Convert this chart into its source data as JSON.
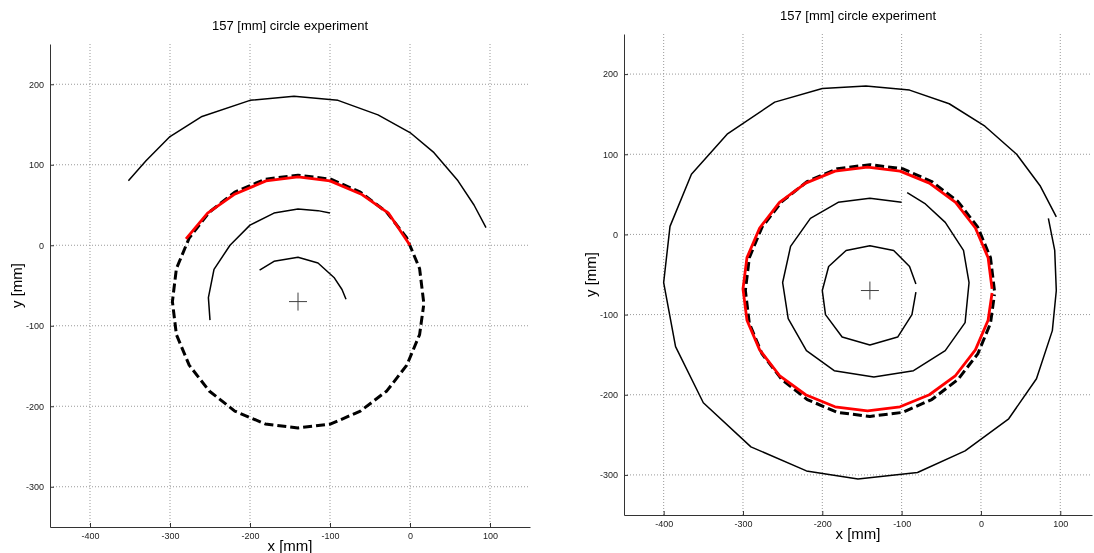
{
  "chart_data": [
    {
      "type": "line",
      "title": "157 [mm] circle experiment",
      "xlabel": "x [mm]",
      "ylabel": "y [mm]",
      "xlim": [
        -450,
        150
      ],
      "ylim": [
        -350,
        250
      ],
      "xticks": [
        -400,
        -300,
        -200,
        -100,
        0,
        100
      ],
      "yticks": [
        -300,
        -200,
        -100,
        0,
        100,
        200
      ],
      "grid": true,
      "series": [
        {
          "color": "#000000",
          "x": [
            -188,
            -170,
            -140,
            -115,
            -95,
            -85,
            -80,
            null,
            -250,
            -252,
            -245,
            -225,
            -200,
            -170,
            -140,
            -115,
            -100,
            null,
            -352,
            -330,
            -300,
            -260,
            -200,
            -145,
            -90,
            -40,
            0,
            30,
            60,
            80,
            95
          ],
          "values": [
            -31,
            -20,
            -15,
            -22,
            -40,
            -55,
            -67,
            null,
            -93,
            -65,
            -30,
            0,
            25,
            40,
            45,
            43,
            40,
            null,
            80,
            105,
            135,
            160,
            180,
            185,
            180,
            162,
            140,
            115,
            80,
            50,
            22
          ]
        },
        {
          "color": "#000000",
          "line_style": "dashed",
          "x": [
            17,
            12,
            -4,
            -29,
            -62,
            -99,
            -140,
            -181,
            -219,
            -251,
            -276,
            -292,
            -297,
            -292,
            -276,
            -251,
            -219,
            -181,
            -140,
            -99,
            -62,
            -29,
            -4,
            12,
            17
          ],
          "values": [
            -70,
            -29,
            9,
            41,
            66,
            82,
            87,
            82,
            66,
            41,
            9,
            -29,
            -70,
            -111,
            -149,
            -181,
            -206,
            -222,
            -227,
            -222,
            -206,
            -181,
            -149,
            -111,
            -75
          ]
        },
        {
          "color": "#ff0000",
          "x": [
            0,
            -27,
            -60,
            -100,
            -140,
            -180,
            -220,
            -253,
            -280
          ],
          "values": [
            0,
            40,
            63,
            80,
            85,
            80,
            63,
            40,
            8
          ]
        },
        {
          "type": "scatter",
          "marker": "cross",
          "color": "#404040",
          "x": [
            -140
          ],
          "values": [
            -70
          ]
        }
      ]
    },
    {
      "type": "line",
      "title": "157 [mm] circle experiment",
      "xlabel": "x [mm]",
      "ylabel": "y [mm]",
      "xlim": [
        -450,
        140
      ],
      "ylim": [
        -350,
        250
      ],
      "xticks": [
        -400,
        -300,
        -200,
        -100,
        0,
        100
      ],
      "yticks": [
        -300,
        -200,
        -100,
        0,
        100,
        200
      ],
      "grid": true,
      "series": [
        {
          "color": "#000000",
          "x": [
            -82,
            -87,
            -105,
            -140,
            -175,
            -196,
            -200,
            -192,
            -170,
            -140,
            -110,
            -90,
            -82,
            null,
            -100,
            -140,
            -180,
            -215,
            -240,
            -250,
            -243,
            -220,
            -185,
            -135,
            -85,
            -45,
            -20,
            -15,
            -22,
            -45,
            -70,
            -93,
            null,
            85,
            93,
            95,
            90,
            70,
            35,
            -20,
            -80,
            -155,
            -220,
            -290,
            -350,
            -385,
            -400,
            -392,
            -365,
            -320,
            -260,
            -200,
            -145,
            -90,
            -40,
            5,
            45,
            75,
            95
          ],
          "values": [
            -72,
            -100,
            -128,
            -138,
            -128,
            -100,
            -70,
            -40,
            -20,
            -14,
            -20,
            -40,
            -62,
            null,
            40,
            45,
            40,
            20,
            -15,
            -60,
            -105,
            -145,
            -170,
            -178,
            -170,
            -145,
            -110,
            -60,
            -20,
            15,
            38,
            52,
            null,
            20,
            -20,
            -70,
            -120,
            -180,
            -230,
            -270,
            -297,
            -305,
            -295,
            -265,
            -210,
            -140,
            -60,
            10,
            75,
            125,
            165,
            182,
            185,
            180,
            163,
            135,
            100,
            60,
            22
          ]
        },
        {
          "color": "#000000",
          "line_style": "dashed",
          "x": [
            17,
            12,
            -4,
            -29,
            -62,
            -99,
            -140,
            -181,
            -219,
            -251,
            -276,
            -292,
            -297,
            -292,
            -276,
            -251,
            -219,
            -181,
            -140,
            -99,
            -62,
            -29,
            -4,
            12,
            17
          ],
          "values": [
            -70,
            -29,
            9,
            41,
            66,
            82,
            87,
            82,
            66,
            41,
            9,
            -29,
            -70,
            -111,
            -149,
            -181,
            -206,
            -222,
            -227,
            -222,
            -206,
            -181,
            -149,
            -111,
            -75
          ]
        },
        {
          "color": "#ff0000",
          "x": [
            14,
            9,
            -7,
            -32,
            -65,
            -102,
            -143,
            -184,
            -221,
            -254,
            -279,
            -295,
            -300,
            -295,
            -279,
            -254,
            -221,
            -184,
            -143,
            -102,
            -65,
            -32,
            -7,
            9,
            14
          ],
          "values": [
            -68,
            -29,
            8,
            40,
            64,
            79,
            84,
            79,
            64,
            40,
            8,
            -29,
            -68,
            -107,
            -144,
            -176,
            -200,
            -215,
            -220,
            -215,
            -200,
            -176,
            -144,
            -107,
            -73
          ]
        },
        {
          "type": "scatter",
          "marker": "cross",
          "color": "#404040",
          "x": [
            -140
          ],
          "values": [
            -70
          ]
        }
      ]
    }
  ]
}
